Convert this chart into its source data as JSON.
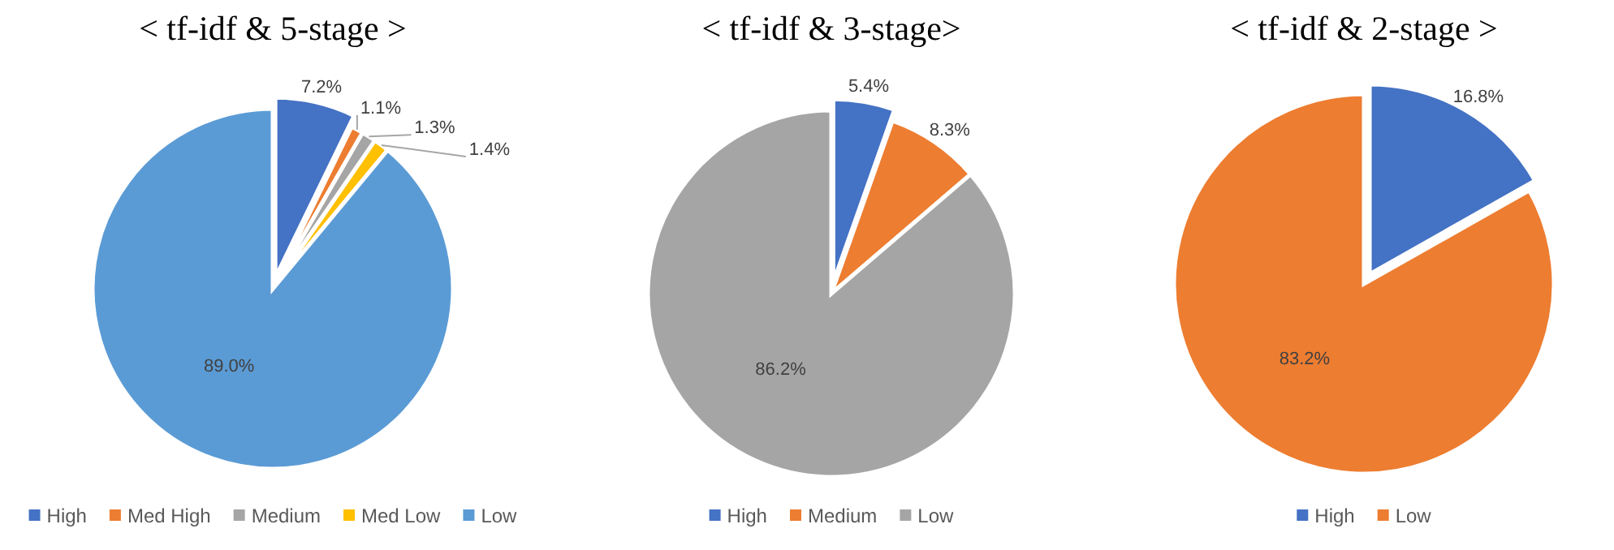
{
  "chart_data": [
    {
      "type": "pie",
      "title": "< tf-idf & 5-stage >",
      "categories": [
        "High",
        "Med High",
        "Medium",
        "Med Low",
        "Low"
      ],
      "values": [
        7.2,
        1.1,
        1.3,
        1.4,
        89.0
      ],
      "value_labels": [
        "7.2%",
        "1.1%",
        "1.3%",
        "1.4%",
        "89.0%"
      ],
      "colors": [
        "#4472c4",
        "#ed7d31",
        "#a5a5a5",
        "#ffc000",
        "#5b9bd5"
      ],
      "legend": "bottom"
    },
    {
      "type": "pie",
      "title": "< tf-idf & 3-stage>",
      "categories": [
        "High",
        "Medium",
        "Low"
      ],
      "values": [
        5.4,
        8.3,
        86.2
      ],
      "value_labels": [
        "5.4%",
        "8.3%",
        "86.2%"
      ],
      "colors": [
        "#4472c4",
        "#ed7d31",
        "#a5a5a5"
      ],
      "legend": "bottom"
    },
    {
      "type": "pie",
      "title": "< tf-idf & 2-stage >",
      "categories": [
        "High",
        "Low"
      ],
      "values": [
        16.8,
        83.2
      ],
      "value_labels": [
        "16.8%",
        "83.2%"
      ],
      "colors": [
        "#4472c4",
        "#ed7d31"
      ],
      "legend": "bottom"
    }
  ]
}
